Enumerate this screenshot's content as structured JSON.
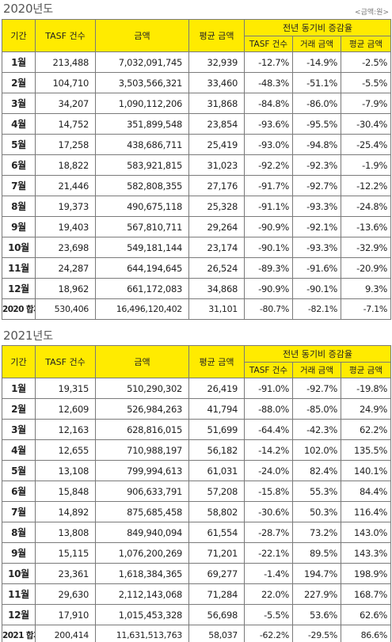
{
  "section_2020": {
    "year": "2020",
    "suffix": "년도",
    "unit": "<금액:원>",
    "headers": {
      "period": "기간",
      "tasf_count": "TASF 건수",
      "amount": "금액",
      "avg_amount": "평균 금액",
      "yoy_group": "전년 동기비 증감율",
      "yoy_tasf": "TASF 건수",
      "yoy_trade": "거래 금액",
      "yoy_avg": "평균 금액"
    },
    "rows": [
      [
        "1월",
        "213,488",
        "7,032,091,745",
        "32,939",
        "-12.7%",
        "-14.9%",
        "-2.5%"
      ],
      [
        "2월",
        "104,710",
        "3,503,566,321",
        "33,460",
        "-48.3%",
        "-51.1%",
        "-5.5%"
      ],
      [
        "3월",
        "34,207",
        "1,090,112,206",
        "31,868",
        "-84.8%",
        "-86.0%",
        "-7.9%"
      ],
      [
        "4월",
        "14,752",
        "351,899,548",
        "23,854",
        "-93.6%",
        "-95.5%",
        "-30.4%"
      ],
      [
        "5월",
        "17,258",
        "438,686,711",
        "25,419",
        "-93.0%",
        "-94.8%",
        "-25.4%"
      ],
      [
        "6월",
        "18,822",
        "583,921,815",
        "31,023",
        "-92.2%",
        "-92.3%",
        "-1.9%"
      ],
      [
        "7월",
        "21,446",
        "582,808,355",
        "27,176",
        "-91.7%",
        "-92.7%",
        "-12.2%"
      ],
      [
        "8월",
        "19,373",
        "490,675,118",
        "25,328",
        "-91.1%",
        "-93.3%",
        "-24.8%"
      ],
      [
        "9월",
        "19,403",
        "567,810,711",
        "29,264",
        "-90.9%",
        "-92.1%",
        "-13.6%"
      ],
      [
        "10월",
        "23,698",
        "549,181,144",
        "23,174",
        "-90.1%",
        "-93.3%",
        "-32.9%"
      ],
      [
        "11월",
        "24,287",
        "644,194,645",
        "26,524",
        "-89.3%",
        "-91.6%",
        "-20.9%"
      ],
      [
        "12월",
        "18,962",
        "661,172,083",
        "34,868",
        "-90.9%",
        "-90.1%",
        "9.3%"
      ],
      [
        "2020 합계",
        "530,406",
        "16,496,120,402",
        "31,101",
        "-80.7%",
        "-82.1%",
        "-7.1%"
      ]
    ]
  },
  "section_2021": {
    "year": "2021",
    "suffix": "년도",
    "headers": {
      "period": "기간",
      "tasf_count": "TASF 건수",
      "amount": "금액",
      "avg_amount": "평균 금액",
      "yoy_group": "전년 동기비 증감율",
      "yoy_tasf": "TASF 건수",
      "yoy_trade": "거래 금액",
      "yoy_avg": "평균 금액"
    },
    "rows": [
      [
        "1월",
        "19,315",
        "510,290,302",
        "26,419",
        "-91.0%",
        "-92.7%",
        "-19.8%"
      ],
      [
        "2월",
        "12,609",
        "526,984,263",
        "41,794",
        "-88.0%",
        "-85.0%",
        "24.9%"
      ],
      [
        "3월",
        "12,163",
        "628,816,015",
        "51,699",
        "-64.4%",
        "-42.3%",
        "62.2%"
      ],
      [
        "4월",
        "12,655",
        "710,988,197",
        "56,182",
        "-14.2%",
        "102.0%",
        "135.5%"
      ],
      [
        "5월",
        "13,108",
        "799,994,613",
        "61,031",
        "-24.0%",
        "82.4%",
        "140.1%"
      ],
      [
        "6월",
        "15,848",
        "906,633,791",
        "57,208",
        "-15.8%",
        "55.3%",
        "84.4%"
      ],
      [
        "7월",
        "14,892",
        "875,685,458",
        "58,802",
        "-30.6%",
        "50.3%",
        "116.4%"
      ],
      [
        "8월",
        "13,808",
        "849,940,094",
        "61,554",
        "-28.7%",
        "73.2%",
        "143.0%"
      ],
      [
        "9월",
        "15,115",
        "1,076,200,269",
        "71,201",
        "-22.1%",
        "89.5%",
        "143.3%"
      ],
      [
        "10월",
        "23,361",
        "1,618,384,365",
        "69,277",
        "-1.4%",
        "194.7%",
        "198.9%"
      ],
      [
        "11월",
        "29,630",
        "2,112,143,068",
        "71,284",
        "22.0%",
        "227.9%",
        "168.7%"
      ],
      [
        "12월",
        "17,910",
        "1,015,453,328",
        "56,698",
        "-5.5%",
        "53.6%",
        "62.6%"
      ],
      [
        "2021 합계",
        "200,414",
        "11,631,513,763",
        "58,037",
        "-62.2%",
        "-29.5%",
        "86.6%"
      ]
    ]
  }
}
